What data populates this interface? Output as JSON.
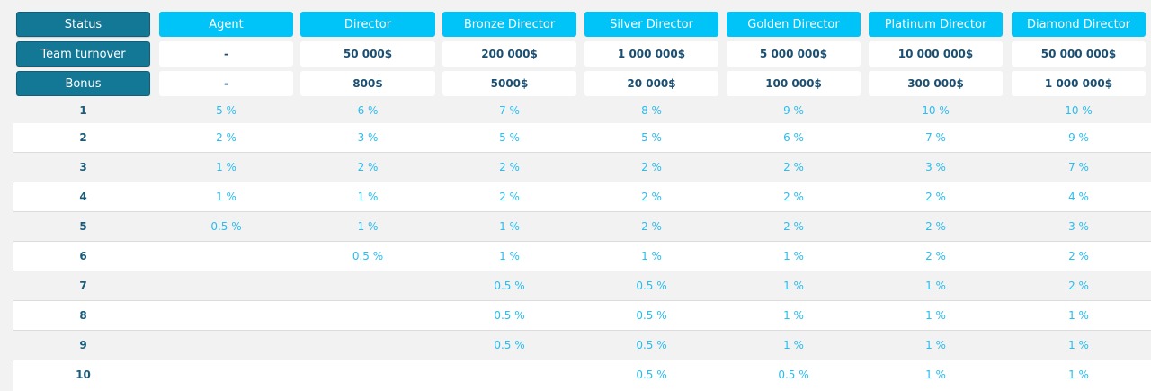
{
  "header": {
    "status_label": "Status",
    "statuses": [
      "Agent",
      "Director",
      "Bronze Director",
      "Silver Director",
      "Golden Director",
      "Platinum Director",
      "Diamond Director"
    ],
    "turnover_label": "Team turnover",
    "turnover": [
      "-",
      "50 000$",
      "200 000$",
      "1 000 000$",
      "5 000 000$",
      "10 000 000$",
      "50 000 000$"
    ],
    "bonus_label": "Bonus",
    "bonus": [
      "-",
      "800$",
      "5000$",
      "20 000$",
      "100 000$",
      "300 000$",
      "1 000 000$"
    ]
  },
  "levels": [
    {
      "level": "1",
      "values": [
        "5 %",
        "6 %",
        "7 %",
        "8 %",
        "9 %",
        "10 %",
        "10 %"
      ]
    },
    {
      "level": "2",
      "values": [
        "2 %",
        "3 %",
        "5 %",
        "5 %",
        "6 %",
        "7 %",
        "9 %"
      ]
    },
    {
      "level": "3",
      "values": [
        "1 %",
        "2 %",
        "2 %",
        "2 %",
        "2 %",
        "3 %",
        "7 %"
      ]
    },
    {
      "level": "4",
      "values": [
        "1 %",
        "1 %",
        "2 %",
        "2 %",
        "2 %",
        "2 %",
        "4 %"
      ]
    },
    {
      "level": "5",
      "values": [
        "0.5 %",
        "1 %",
        "1 %",
        "2 %",
        "2 %",
        "2 %",
        "3 %"
      ]
    },
    {
      "level": "6",
      "values": [
        "",
        "0.5 %",
        "1 %",
        "1 %",
        "1 %",
        "2 %",
        "2 %"
      ]
    },
    {
      "level": "7",
      "values": [
        "",
        "",
        "0.5 %",
        "0.5 %",
        "1 %",
        "1 %",
        "2 %"
      ]
    },
    {
      "level": "8",
      "values": [
        "",
        "",
        "0.5 %",
        "0.5 %",
        "1 %",
        "1 %",
        "1 %"
      ]
    },
    {
      "level": "9",
      "values": [
        "",
        "",
        "0.5 %",
        "0.5 %",
        "1 %",
        "1 %",
        "1 %"
      ]
    },
    {
      "level": "10",
      "values": [
        "",
        "",
        "",
        "0.5 %",
        "0.5 %",
        "1 %",
        "1 %"
      ]
    }
  ]
}
